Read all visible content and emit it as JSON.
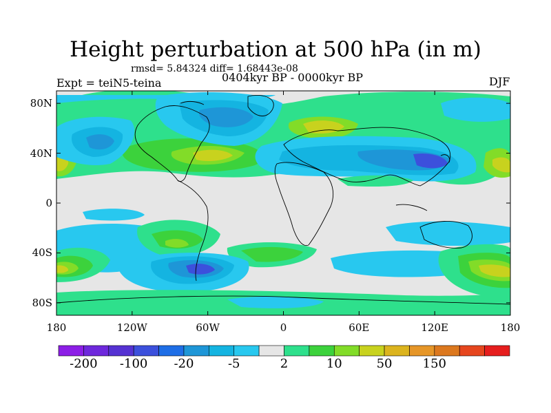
{
  "header": {
    "title": "Height perturbation at 500 hPa (in m)",
    "stats": "rmsd= 5.84324 diff= 1.68443e-08",
    "experiment": "Expt = teiN5-teina",
    "period": "0404kyr BP - 0000kyr BP",
    "season": "DJF"
  },
  "map": {
    "projection": "cylindrical equidistant",
    "lon_range": [
      -180,
      180
    ],
    "lat_range": [
      -90,
      90
    ],
    "lat_ticks": [
      {
        "value": 80,
        "label": "80N"
      },
      {
        "value": 40,
        "label": "40N"
      },
      {
        "value": 0,
        "label": "0"
      },
      {
        "value": -40,
        "label": "40S"
      },
      {
        "value": -80,
        "label": "80S"
      }
    ],
    "lon_ticks": [
      {
        "value": -180,
        "label": "180"
      },
      {
        "value": -120,
        "label": "120W"
      },
      {
        "value": -60,
        "label": "60W"
      },
      {
        "value": 0,
        "label": "0"
      },
      {
        "value": 60,
        "label": "60E"
      },
      {
        "value": 120,
        "label": "120E"
      },
      {
        "value": 180,
        "label": "180"
      }
    ],
    "background_color": "#e6e6e6",
    "features": [
      {
        "name": "negative-anomaly-north-pacific",
        "lon": -140,
        "lat": 48,
        "level": -5
      },
      {
        "name": "negative-anomaly-north-america",
        "lon": -60,
        "lat": 68,
        "level": -5
      },
      {
        "name": "positive-anomaly-north-atlantic",
        "lon": -50,
        "lat": 40,
        "level": 50
      },
      {
        "name": "positive-anomaly-europe",
        "lon": 20,
        "lat": 58,
        "level": 10
      },
      {
        "name": "negative-anomaly-asia",
        "lon": 110,
        "lat": 38,
        "level": -20
      },
      {
        "name": "positive-anomaly-east-pacific",
        "lon": 175,
        "lat": 35,
        "level": 10
      },
      {
        "name": "negative-anomaly-south-atlantic",
        "lon": -40,
        "lat": -55,
        "level": -20
      },
      {
        "name": "positive-anomaly-south-pacific",
        "lon": -175,
        "lat": -55,
        "level": 50
      },
      {
        "name": "positive-anomaly-south-indian",
        "lon": 170,
        "lat": -57,
        "level": 50
      },
      {
        "name": "positive-anomaly-south-america",
        "lon": -80,
        "lat": -35,
        "level": 10
      }
    ]
  },
  "colorbar": {
    "colors": [
      "#8c1ee6",
      "#6e28dc",
      "#5532d2",
      "#3c50dc",
      "#1e6ee6",
      "#1e96d7",
      "#14b4e1",
      "#28c8ef",
      "#e6e6e6",
      "#2ee08c",
      "#3cd23c",
      "#82dc28",
      "#c8d21e",
      "#dcb41e",
      "#e69628",
      "#dc781e",
      "#e6461e",
      "#e61e1e"
    ],
    "labels": [
      "-200",
      "-100",
      "-20",
      "-5",
      "2",
      "10",
      "50",
      "150"
    ]
  }
}
